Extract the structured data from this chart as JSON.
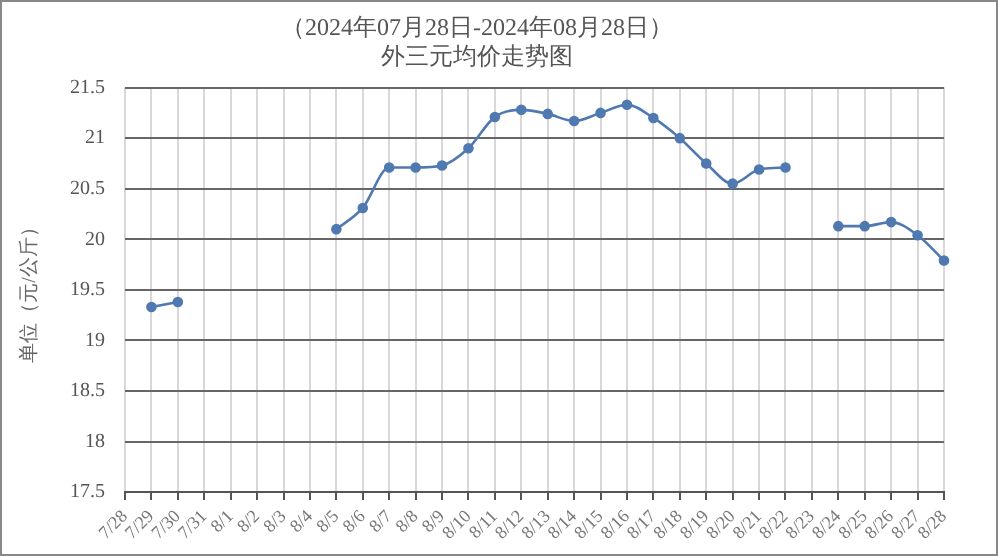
{
  "chart_data": {
    "type": "line",
    "title": "（2024年07月28日-2024年08月28日）",
    "subtitle": "外三元均价走势图",
    "ylabel": "单位（元/公斤）",
    "categories": [
      "7/28",
      "7/29",
      "7/30",
      "7/31",
      "8/1",
      "8/2",
      "8/3",
      "8/4",
      "8/5",
      "8/6",
      "8/7",
      "8/8",
      "8/9",
      "8/10",
      "8/11",
      "8/12",
      "8/13",
      "8/14",
      "8/15",
      "8/16",
      "8/17",
      "8/18",
      "8/19",
      "8/20",
      "8/21",
      "8/22",
      "8/23",
      "8/24",
      "8/25",
      "8/26",
      "8/27",
      "8/28"
    ],
    "series": [
      {
        "color": "#4f79b0",
        "values": [
          null,
          19.33,
          19.38,
          null,
          null,
          null,
          null,
          null,
          20.1,
          20.31,
          20.71,
          20.71,
          20.73,
          20.9,
          21.21,
          21.28,
          21.24,
          21.17,
          21.25,
          21.33,
          21.2,
          21.0,
          20.75,
          20.55,
          20.69,
          20.71,
          null,
          20.13,
          20.13,
          20.17,
          20.04,
          19.79
        ]
      }
    ],
    "ylim": [
      17.5,
      21.5
    ],
    "yticks": [
      17.5,
      18,
      18.5,
      19,
      19.5,
      20,
      20.5,
      21,
      21.5
    ],
    "grid": true,
    "legend": false,
    "marker": "circle",
    "line_style": "solid"
  }
}
